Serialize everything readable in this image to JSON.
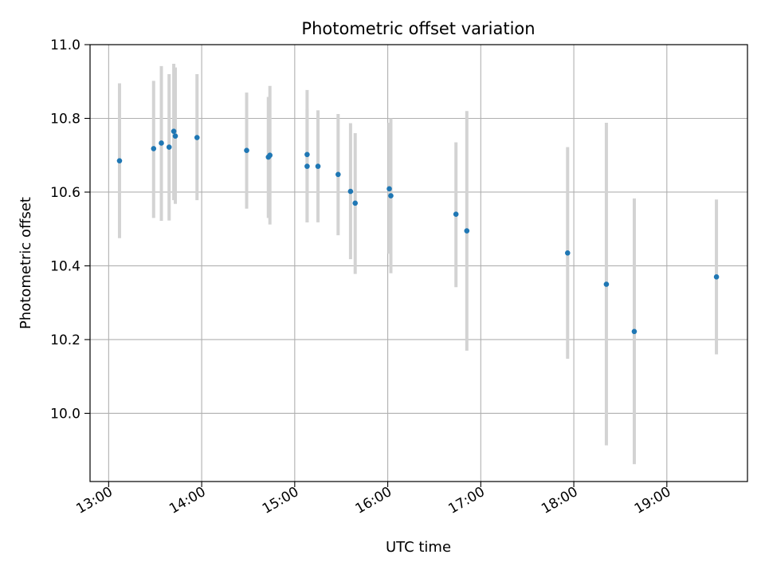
{
  "chart_data": {
    "type": "scatter",
    "title": "Photometric offset variation",
    "xlabel": "UTC time",
    "ylabel": "Photometric offset",
    "x_ticks": [
      "13:00",
      "14:00",
      "15:00",
      "16:00",
      "17:00",
      "18:00",
      "19:00"
    ],
    "y_ticks": [
      "10.0",
      "10.2",
      "10.4",
      "10.6",
      "10.8",
      "11.0"
    ],
    "ylim": [
      9.815,
      11.0
    ],
    "xlim": [
      "12:48",
      "19:52"
    ],
    "grid": true,
    "colors": {
      "point": "#1f77b4",
      "errorbar": "#d3d3d3",
      "grid": "#b0b0b0"
    },
    "points": [
      {
        "x": "13:07",
        "y": 10.685,
        "ylow": 10.475,
        "yhigh": 10.895
      },
      {
        "x": "13:29",
        "y": 10.718,
        "ylow": 10.53,
        "yhigh": 10.902
      },
      {
        "x": "13:34",
        "y": 10.733,
        "ylow": 10.522,
        "yhigh": 10.942
      },
      {
        "x": "13:39",
        "y": 10.722,
        "ylow": 10.523,
        "yhigh": 10.92
      },
      {
        "x": "13:42",
        "y": 10.765,
        "ylow": 10.578,
        "yhigh": 10.948
      },
      {
        "x": "13:43",
        "y": 10.752,
        "ylow": 10.568,
        "yhigh": 10.938
      },
      {
        "x": "13:57",
        "y": 10.748,
        "ylow": 10.578,
        "yhigh": 10.92
      },
      {
        "x": "14:29",
        "y": 10.713,
        "ylow": 10.555,
        "yhigh": 10.87
      },
      {
        "x": "14:43",
        "y": 10.695,
        "ylow": 10.53,
        "yhigh": 10.858
      },
      {
        "x": "14:44",
        "y": 10.7,
        "ylow": 10.512,
        "yhigh": 10.888
      },
      {
        "x": "15:08",
        "y": 10.702,
        "ylow": 10.518,
        "yhigh": 10.877
      },
      {
        "x": "15:08",
        "y": 10.67,
        "ylow": 10.518,
        "yhigh": 10.825
      },
      {
        "x": "15:15",
        "y": 10.67,
        "ylow": 10.518,
        "yhigh": 10.822
      },
      {
        "x": "15:28",
        "y": 10.648,
        "ylow": 10.483,
        "yhigh": 10.812
      },
      {
        "x": "15:36",
        "y": 10.602,
        "ylow": 10.418,
        "yhigh": 10.787
      },
      {
        "x": "15:39",
        "y": 10.57,
        "ylow": 10.378,
        "yhigh": 10.76
      },
      {
        "x": "16:01",
        "y": 10.609,
        "ylow": 10.433,
        "yhigh": 10.788
      },
      {
        "x": "16:02",
        "y": 10.59,
        "ylow": 10.38,
        "yhigh": 10.8
      },
      {
        "x": "16:44",
        "y": 10.54,
        "ylow": 10.342,
        "yhigh": 10.735
      },
      {
        "x": "16:51",
        "y": 10.495,
        "ylow": 10.17,
        "yhigh": 10.82
      },
      {
        "x": "17:56",
        "y": 10.435,
        "ylow": 10.148,
        "yhigh": 10.722
      },
      {
        "x": "18:21",
        "y": 10.35,
        "ylow": 9.913,
        "yhigh": 10.788
      },
      {
        "x": "18:39",
        "y": 10.222,
        "ylow": 9.862,
        "yhigh": 10.583
      },
      {
        "x": "19:32",
        "y": 10.37,
        "ylow": 10.16,
        "yhigh": 10.58
      }
    ]
  }
}
